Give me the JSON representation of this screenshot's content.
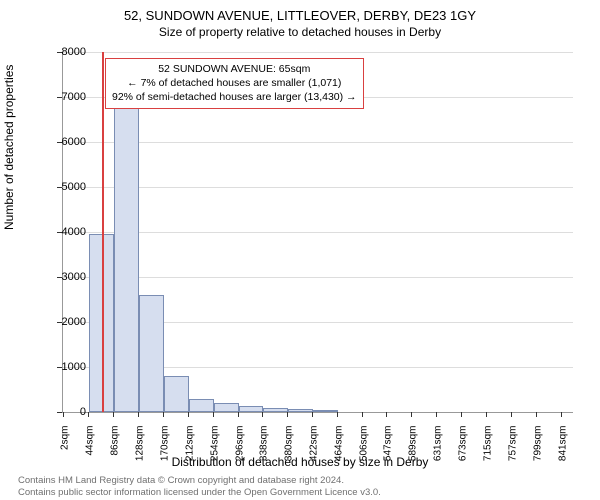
{
  "title_main": "52, SUNDOWN AVENUE, LITTLEOVER, DERBY, DE23 1GY",
  "title_sub": "Size of property relative to detached houses in Derby",
  "y_axis_label": "Number of detached properties",
  "x_axis_label": "Distribution of detached houses by size in Derby",
  "chart": {
    "type": "histogram",
    "bar_fill": "#d6deef",
    "bar_stroke": "#7a8db3",
    "grid_color": "#dddddd",
    "background_color": "#ffffff",
    "marker_color": "#d94040",
    "marker_x": 65,
    "xlim": [
      0,
      860
    ],
    "ylim": [
      0,
      8000
    ],
    "y_ticks": [
      0,
      1000,
      2000,
      3000,
      4000,
      5000,
      6000,
      7000,
      8000
    ],
    "x_ticks": [
      {
        "pos": 2,
        "label": "2sqm"
      },
      {
        "pos": 44,
        "label": "44sqm"
      },
      {
        "pos": 86,
        "label": "86sqm"
      },
      {
        "pos": 128,
        "label": "128sqm"
      },
      {
        "pos": 170,
        "label": "170sqm"
      },
      {
        "pos": 212,
        "label": "212sqm"
      },
      {
        "pos": 254,
        "label": "254sqm"
      },
      {
        "pos": 296,
        "label": "296sqm"
      },
      {
        "pos": 338,
        "label": "338sqm"
      },
      {
        "pos": 380,
        "label": "380sqm"
      },
      {
        "pos": 422,
        "label": "422sqm"
      },
      {
        "pos": 464,
        "label": "464sqm"
      },
      {
        "pos": 506,
        "label": "506sqm"
      },
      {
        "pos": 547,
        "label": "547sqm"
      },
      {
        "pos": 589,
        "label": "589sqm"
      },
      {
        "pos": 631,
        "label": "631sqm"
      },
      {
        "pos": 673,
        "label": "673sqm"
      },
      {
        "pos": 715,
        "label": "715sqm"
      },
      {
        "pos": 757,
        "label": "757sqm"
      },
      {
        "pos": 799,
        "label": "799sqm"
      },
      {
        "pos": 841,
        "label": "841sqm"
      }
    ],
    "bin_width": 42,
    "bars": [
      {
        "x_start": 44,
        "value": 3950
      },
      {
        "x_start": 86,
        "value": 6750
      },
      {
        "x_start": 128,
        "value": 2600
      },
      {
        "x_start": 170,
        "value": 800
      },
      {
        "x_start": 212,
        "value": 280
      },
      {
        "x_start": 254,
        "value": 200
      },
      {
        "x_start": 296,
        "value": 130
      },
      {
        "x_start": 338,
        "value": 90
      },
      {
        "x_start": 380,
        "value": 60
      },
      {
        "x_start": 422,
        "value": 30
      }
    ]
  },
  "info_box": {
    "line1": "52 SUNDOWN AVENUE: 65sqm",
    "line2": "← 7% of detached houses are smaller (1,071)",
    "line3": "92% of semi-detached houses are larger (13,430) →"
  },
  "footer_line1": "Contains HM Land Registry data © Crown copyright and database right 2024.",
  "footer_line2": "Contains public sector information licensed under the Open Government Licence v3.0."
}
